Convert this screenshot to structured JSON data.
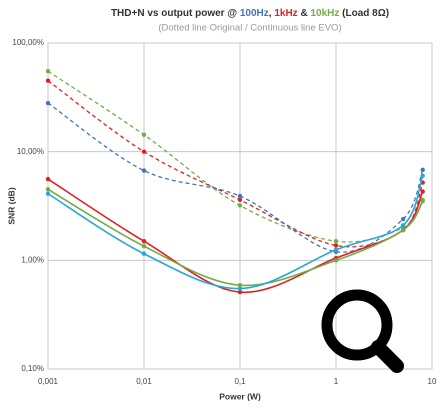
{
  "chart_data": {
    "type": "line",
    "title_parts": [
      {
        "text": "THD+N vs output power @ ",
        "color": "#333333"
      },
      {
        "text": "100Hz",
        "color": "#4472c4"
      },
      {
        "text": ", ",
        "color": "#333333"
      },
      {
        "text": "1kHz",
        "color": "#e02020"
      },
      {
        "text": " & ",
        "color": "#333333"
      },
      {
        "text": "10kHz",
        "color": "#70ad47"
      },
      {
        "text": " (Load 8Ω)",
        "color": "#333333"
      }
    ],
    "subtitle": "(Dotted line Original / Continuous line EVO)",
    "x_label": "Power (W)",
    "y_label": "SNR (dB)",
    "x_log": true,
    "y_log": true,
    "grid": true,
    "x": [
      0.001,
      0.01,
      0.1,
      1,
      5,
      8
    ],
    "xlim": [
      0.001,
      10
    ],
    "xticks": [
      {
        "value": 0.001,
        "label": "0,001"
      },
      {
        "value": 0.01,
        "label": "0,01"
      },
      {
        "value": 0.1,
        "label": "0,1"
      },
      1,
      10
    ],
    "ylim": [
      0.1,
      100
    ],
    "yticks": [
      {
        "value": 0.1,
        "label": "0,10%"
      },
      {
        "value": 1,
        "label": "1,00%"
      },
      {
        "value": 10,
        "label": "10,00%"
      },
      {
        "value": 100,
        "label": "100,00%"
      }
    ],
    "series": [
      {
        "color": "#70ad47",
        "style": "dashed",
        "values": [
          55,
          14.3,
          3.2,
          1.5,
          2.0,
          3.6
        ]
      },
      {
        "color": "#e02020",
        "style": "dashed",
        "values": [
          45,
          10,
          3.6,
          1.37,
          1.9,
          5.2
        ]
      },
      {
        "color": "#4472c4",
        "style": "dashed",
        "values": [
          28,
          6.7,
          3.9,
          1.2,
          2.4,
          6.8
        ]
      },
      {
        "color": "#e02020",
        "style": "solid",
        "values": [
          5.6,
          1.5,
          0.51,
          1.05,
          1.9,
          4.3
        ]
      },
      {
        "color": "#70ad47",
        "style": "solid",
        "values": [
          4.5,
          1.35,
          0.59,
          1.0,
          1.9,
          3.5
        ]
      },
      {
        "color": "#2aa7d8",
        "style": "solid",
        "values": [
          4.1,
          1.15,
          0.55,
          1.25,
          2.1,
          6.0
        ]
      }
    ]
  }
}
